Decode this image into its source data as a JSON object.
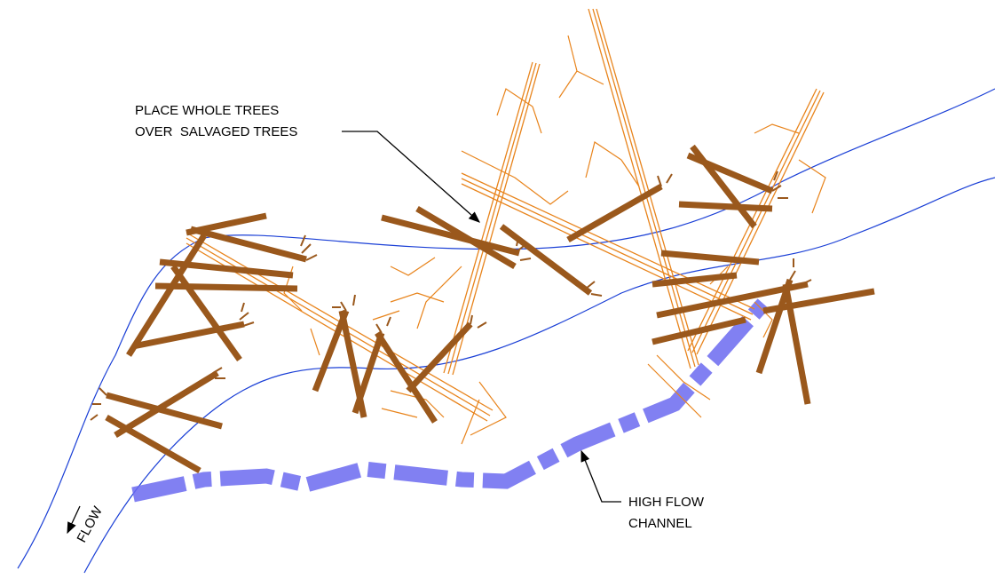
{
  "annotations": [
    {
      "lines": [
        "PLACE WHOLE TREES",
        "OVER  SALVAGED TREES"
      ]
    },
    {
      "lines": [
        "HIGH FLOW",
        "CHANNEL"
      ]
    },
    {
      "lines": [
        "FLOW"
      ]
    }
  ]
}
